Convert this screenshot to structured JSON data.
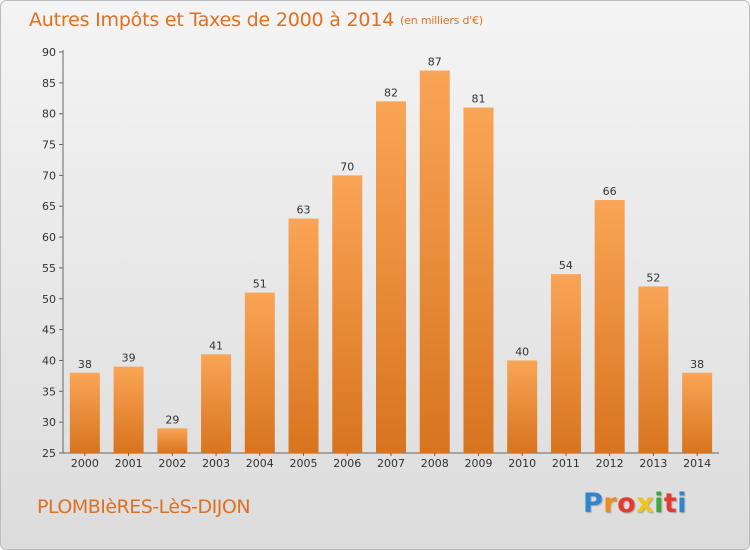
{
  "chart_data": {
    "type": "bar",
    "title": "Autres Impôts et Taxes de 2000 à 2014",
    "subtitle": "(en milliers d'€)",
    "categories": [
      "2000",
      "2001",
      "2002",
      "2003",
      "2004",
      "2005",
      "2006",
      "2007",
      "2008",
      "2009",
      "2010",
      "2011",
      "2012",
      "2013",
      "2014"
    ],
    "values": [
      38,
      39,
      29,
      41,
      51,
      63,
      70,
      82,
      87,
      81,
      40,
      54,
      66,
      52,
      38
    ],
    "ylim": [
      25,
      90
    ],
    "yticks": [
      25,
      30,
      35,
      40,
      45,
      50,
      55,
      60,
      65,
      70,
      75,
      80,
      85,
      90
    ],
    "grid": false,
    "bar_color_top": "#f9a556",
    "bar_color_bottom": "#d8741f"
  },
  "footer": {
    "commune": "PLOMBIèRES-LèS-DIJON",
    "brand": {
      "letters": [
        "P",
        "r",
        "o",
        "x",
        "i",
        "t",
        "i"
      ],
      "colors": [
        "#2e86d1",
        "#f08c1a",
        "#e33b2f",
        "#f2c318",
        "#3aa83a",
        "#e33b2f",
        "#2e86d1"
      ]
    }
  },
  "colors": {
    "accent": "#e07020",
    "axis": "#666666",
    "text": "#333333"
  }
}
